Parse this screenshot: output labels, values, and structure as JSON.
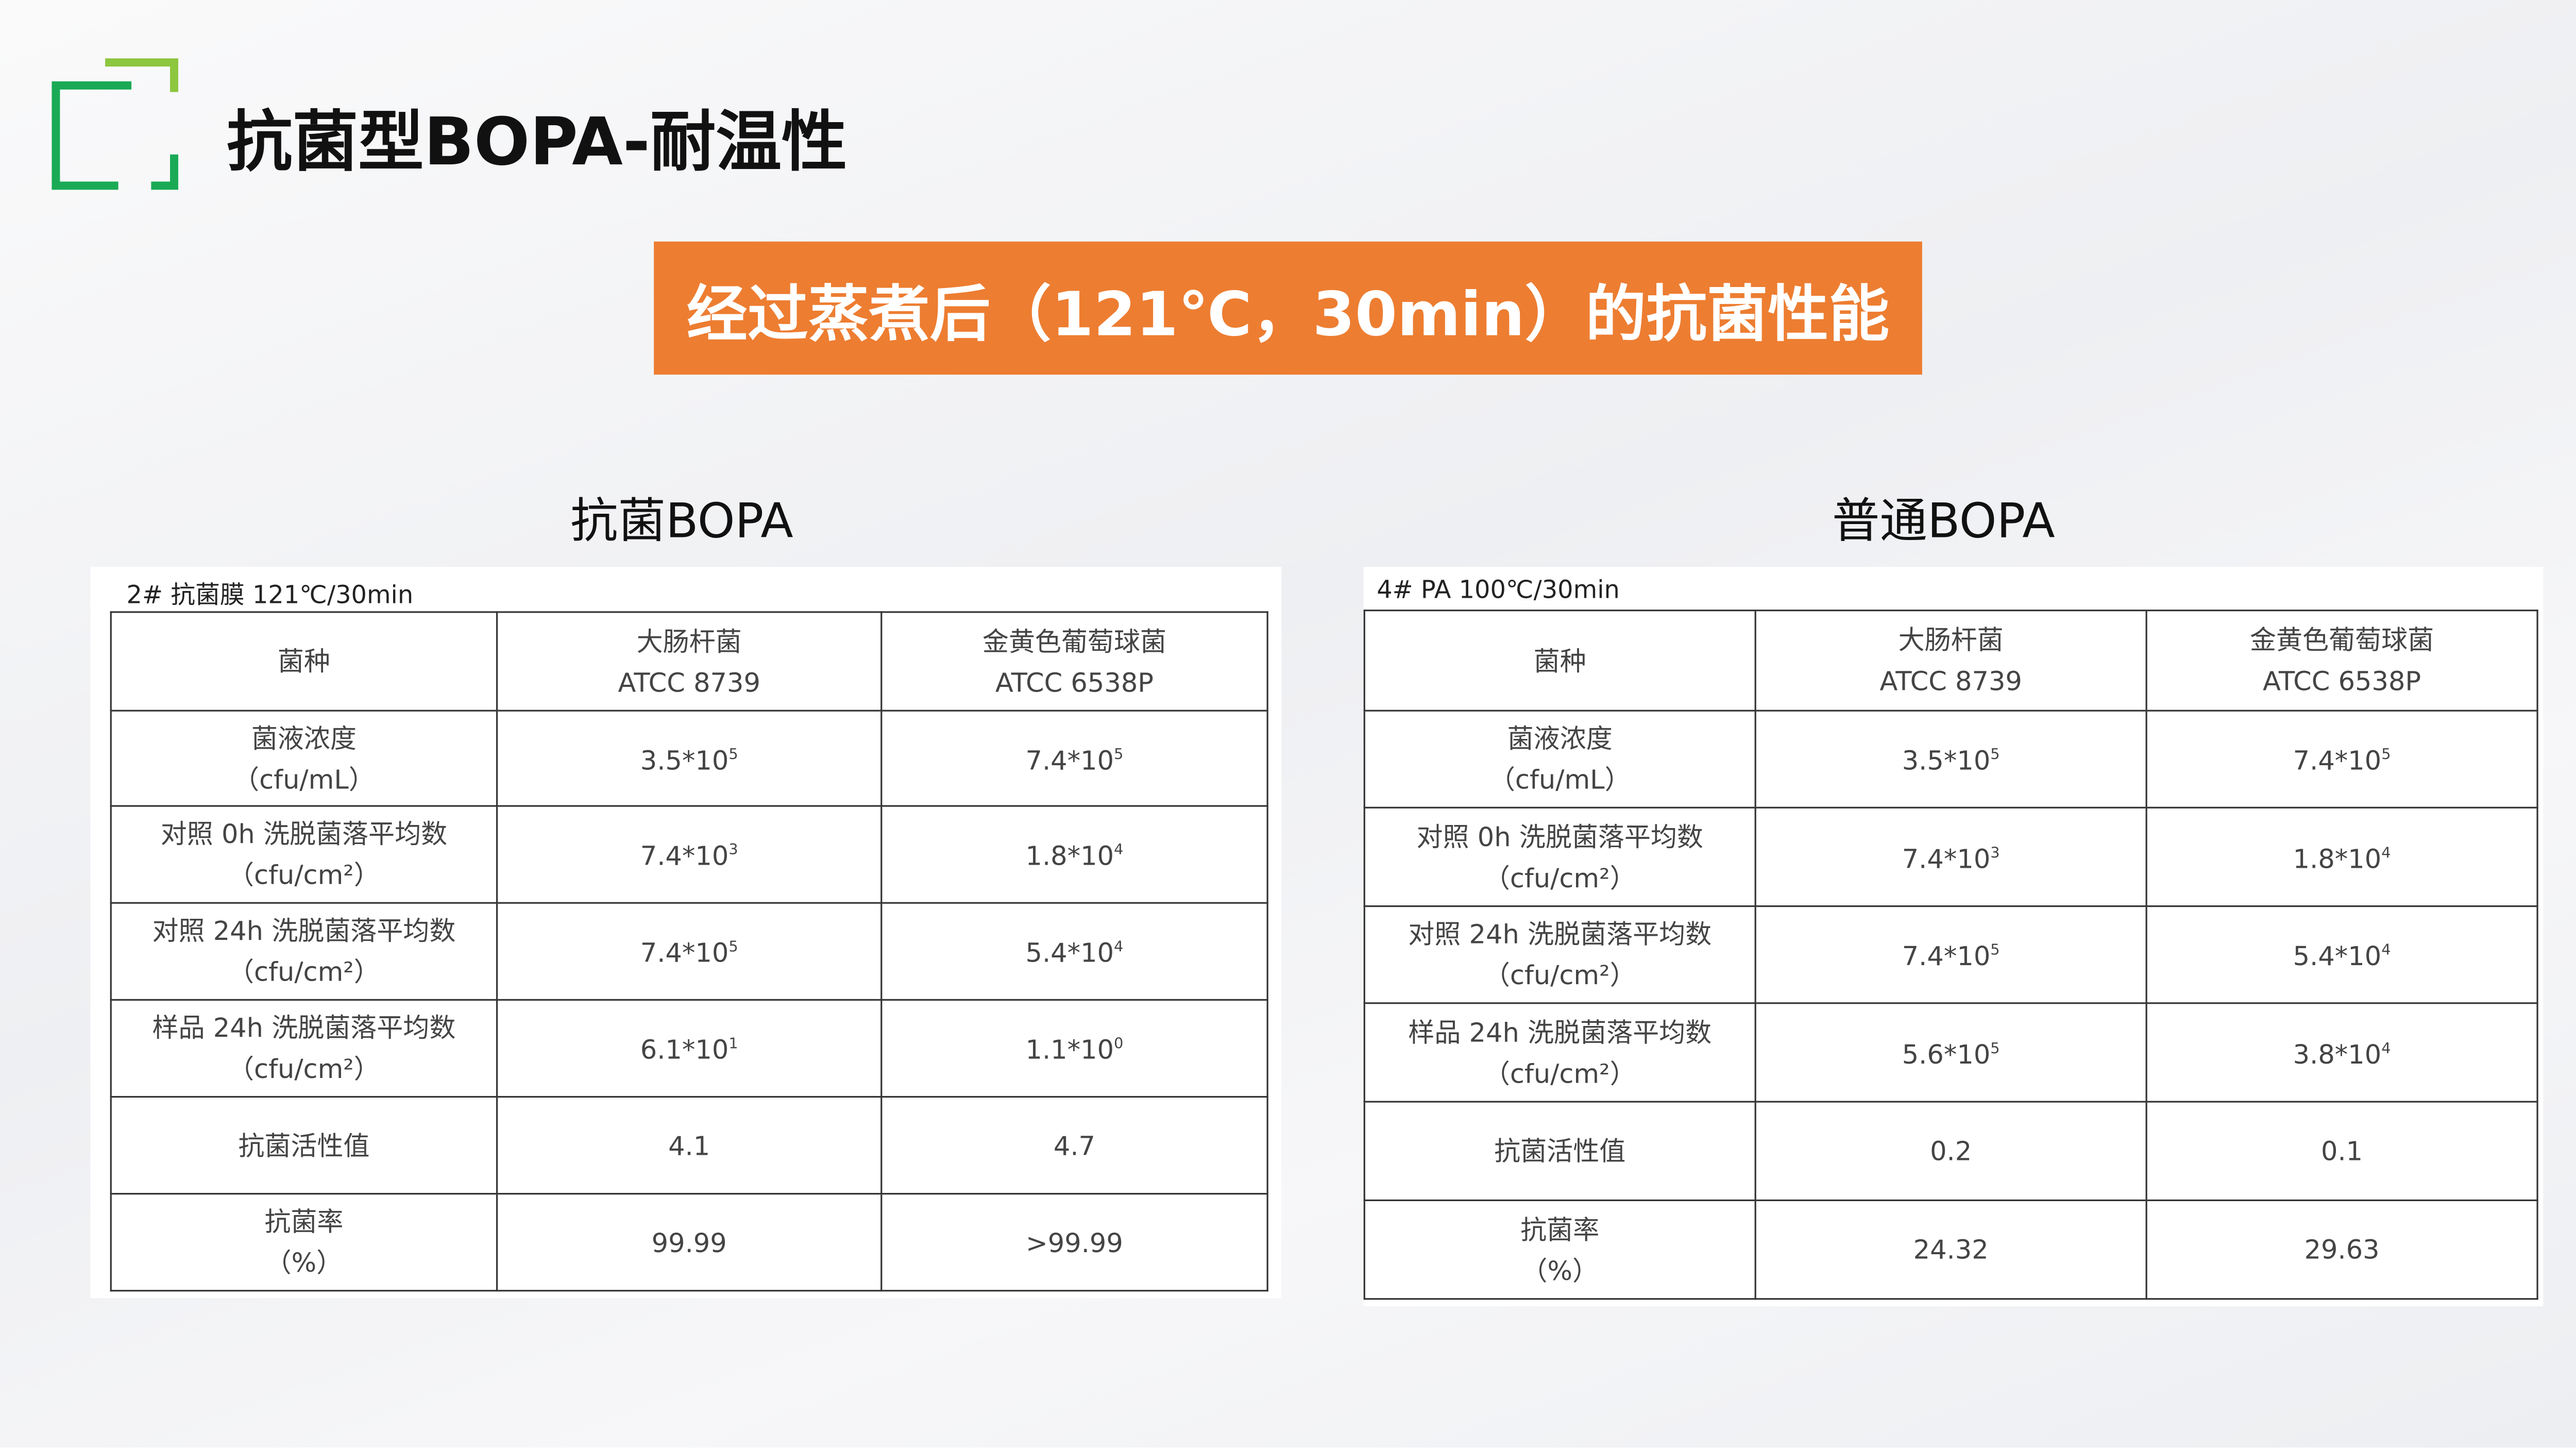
{
  "header": {
    "title": "抗菌型BOPA-耐温性"
  },
  "banner": {
    "text": "经过蒸煮后（121℃，30min）的抗菌性能"
  },
  "tables": [
    {
      "heading": "抗菌BOPA",
      "caption": "2# 抗菌膜 121℃/30min",
      "columns": [
        [
          "菌种"
        ],
        [
          "大肠杆菌",
          "ATCC 8739"
        ],
        [
          "金黄色葡萄球菌",
          "ATCC 6538P"
        ]
      ],
      "rows": [
        {
          "label": [
            "菌液浓度",
            "（cfu/mL）"
          ],
          "cells": [
            {
              "base": "3.5*10",
              "exp": "5"
            },
            {
              "base": "7.4*10",
              "exp": "5"
            }
          ]
        },
        {
          "label": [
            "对照 0h 洗脱菌落平均数",
            "（cfu/cm²）"
          ],
          "cells": [
            {
              "base": "7.4*10",
              "exp": "3"
            },
            {
              "base": "1.8*10",
              "exp": "4"
            }
          ]
        },
        {
          "label": [
            "对照 24h 洗脱菌落平均数",
            "（cfu/cm²）"
          ],
          "cells": [
            {
              "base": "7.4*10",
              "exp": "5"
            },
            {
              "base": "5.4*10",
              "exp": "4"
            }
          ]
        },
        {
          "label": [
            "样品 24h 洗脱菌落平均数",
            "（cfu/cm²）"
          ],
          "cells": [
            {
              "base": "6.1*10",
              "exp": "1"
            },
            {
              "base": "1.1*10",
              "exp": "0"
            }
          ]
        },
        {
          "label": [
            "抗菌活性值"
          ],
          "cells": [
            {
              "base": "4.1"
            },
            {
              "base": "4.7"
            }
          ]
        },
        {
          "label": [
            "抗菌率",
            "（%）"
          ],
          "cells": [
            {
              "base": "99.99"
            },
            {
              "base": ">99.99"
            }
          ]
        }
      ]
    },
    {
      "heading": "普通BOPA",
      "caption": "4# PA 100℃/30min",
      "columns": [
        [
          "菌种"
        ],
        [
          "大肠杆菌",
          "ATCC 8739"
        ],
        [
          "金黄色葡萄球菌",
          "ATCC 6538P"
        ]
      ],
      "rows": [
        {
          "label": [
            "菌液浓度",
            "（cfu/mL）"
          ],
          "cells": [
            {
              "base": "3.5*10",
              "exp": "5"
            },
            {
              "base": "7.4*10",
              "exp": "5"
            }
          ]
        },
        {
          "label": [
            "对照 0h 洗脱菌落平均数",
            "（cfu/cm²）"
          ],
          "cells": [
            {
              "base": "7.4*10",
              "exp": "3"
            },
            {
              "base": "1.8*10",
              "exp": "4"
            }
          ]
        },
        {
          "label": [
            "对照 24h 洗脱菌落平均数",
            "（cfu/cm²）"
          ],
          "cells": [
            {
              "base": "7.4*10",
              "exp": "5"
            },
            {
              "base": "5.4*10",
              "exp": "4"
            }
          ]
        },
        {
          "label": [
            "样品 24h 洗脱菌落平均数",
            "（cfu/cm²）"
          ],
          "cells": [
            {
              "base": "5.6*10",
              "exp": "5"
            },
            {
              "base": "3.8*10",
              "exp": "4"
            }
          ]
        },
        {
          "label": [
            "抗菌活性值"
          ],
          "cells": [
            {
              "base": "0.2"
            },
            {
              "base": "0.1"
            }
          ]
        },
        {
          "label": [
            "抗菌率",
            "（%）"
          ],
          "cells": [
            {
              "base": "24.32"
            },
            {
              "base": "29.63"
            }
          ]
        }
      ]
    }
  ]
}
